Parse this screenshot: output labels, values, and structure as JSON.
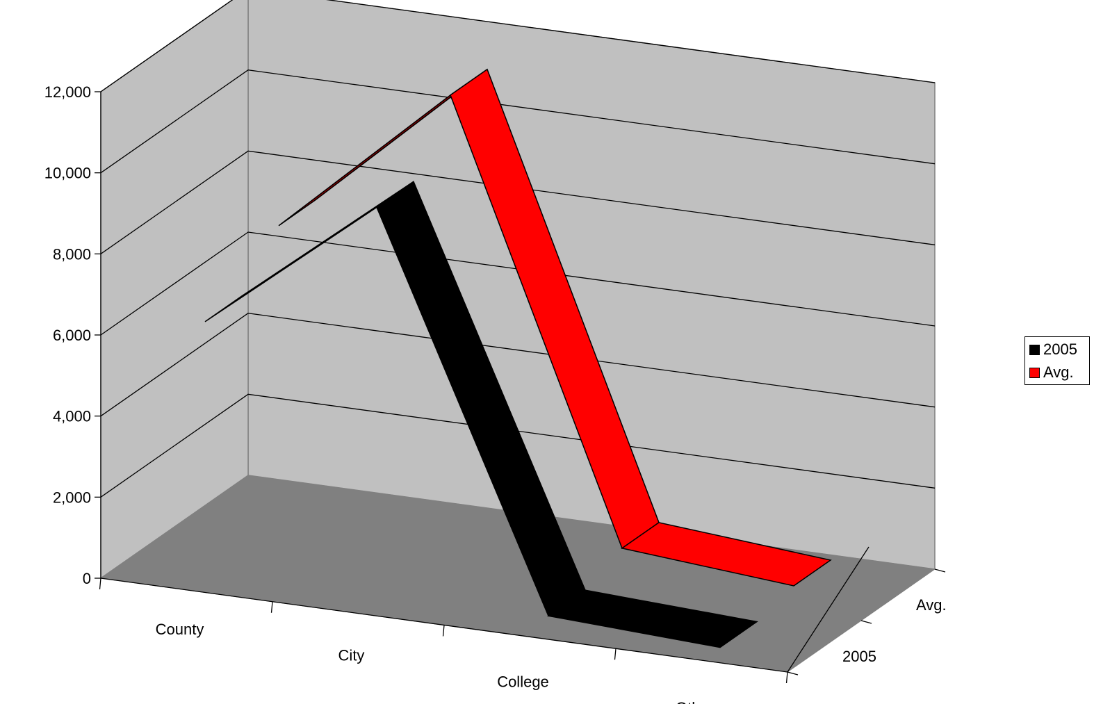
{
  "chart_data": {
    "type": "line",
    "style": "3d-ribbon",
    "title": "",
    "xlabel": "",
    "ylabel": "",
    "categories": [
      "County",
      "City",
      "College",
      "Other"
    ],
    "depth_axis": [
      "2005",
      "Avg."
    ],
    "series": [
      {
        "name": "2005",
        "values": [
          6300,
          9700,
          200,
          0
        ],
        "color": "#000000"
      },
      {
        "name": "Avg.",
        "values": [
          7400,
          11200,
          600,
          250
        ],
        "color": "#ff0000"
      }
    ],
    "ylim": [
      0,
      12000
    ],
    "yticks": [
      "0",
      "2,000",
      "4,000",
      "6,000",
      "8,000",
      "10,000",
      "12,000"
    ],
    "grid": true,
    "legend": "right",
    "wall_color": "#c0c0c0",
    "floor_color": "#808080"
  }
}
